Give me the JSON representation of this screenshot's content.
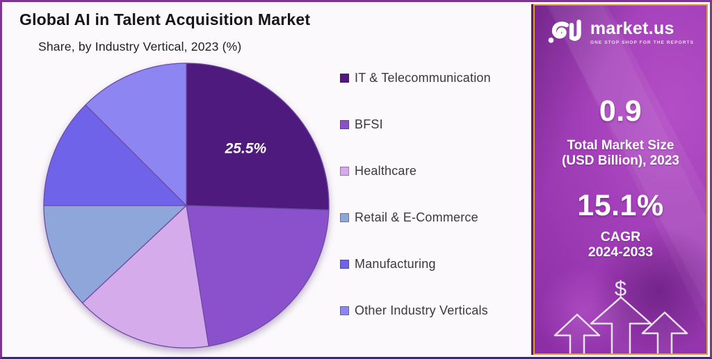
{
  "header": {
    "title": "Global AI in Talent Acquisition Market",
    "subtitle": "Share, by Industry Vertical, 2023 (%)"
  },
  "chart_data": {
    "type": "pie",
    "title": "Global AI in Talent Acquisition Market",
    "subtitle": "Share, by Industry Vertical, 2023 (%)",
    "unit": "percent",
    "direction": "clockwise",
    "start_angle_deg": 0,
    "legend_position": "right",
    "slices": [
      {
        "label": "IT & Telecommunication",
        "value": 25.5,
        "color": "#4E1A7D",
        "data_label": "25.5%"
      },
      {
        "label": "BFSI",
        "value": 22.0,
        "color": "#8B51CC"
      },
      {
        "label": "Healthcare",
        "value": 15.5,
        "color": "#D5ABEC"
      },
      {
        "label": "Retail & E-Commerce",
        "value": 12.0,
        "color": "#8FA6DB"
      },
      {
        "label": "Manufacturing",
        "value": 12.5,
        "color": "#6F63EA"
      },
      {
        "label": "Other Industry Verticals",
        "value": 12.5,
        "color": "#8D86F2"
      }
    ]
  },
  "sidebar": {
    "brand": {
      "name": "market.us",
      "tagline": "ONE STOP SHOP FOR THE REPORTS"
    },
    "market_size": {
      "value": "0.9",
      "label_line1": "Total Market Size",
      "label_line2": "(USD Billion), 2023"
    },
    "cagr": {
      "value": "15.1%",
      "label_line1": "CAGR",
      "label_line2": "2024-2033"
    },
    "dollar_symbol": "$"
  },
  "theme": {
    "frame_purple": "#7C3595",
    "panel_gold": "#DD9E3C",
    "panel_purple": "#B44EC6",
    "slice_stroke": "#6C4BA4",
    "title_color": "#161616",
    "legend_text": "#3A3A3A"
  }
}
